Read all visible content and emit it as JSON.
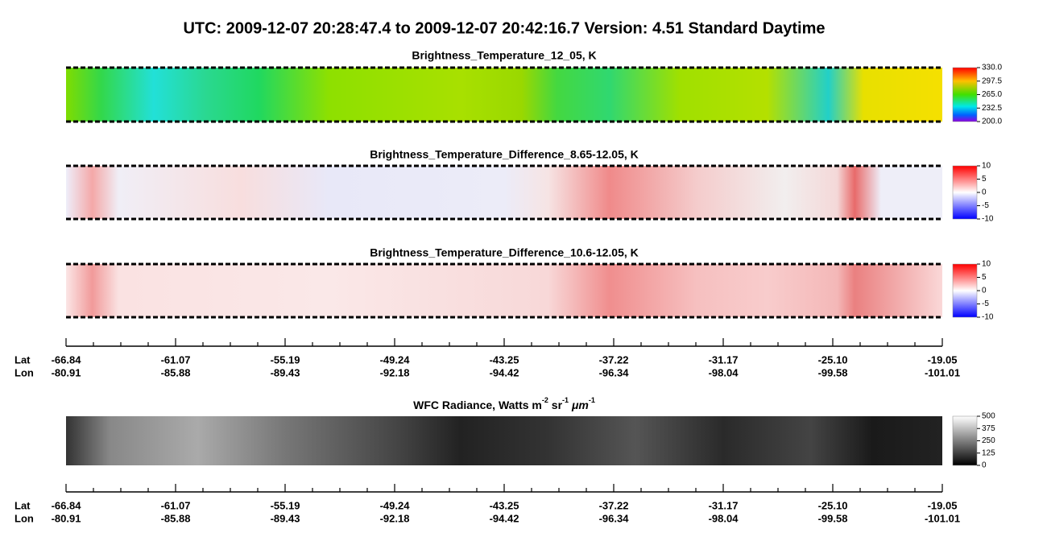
{
  "title": "UTC:  2009-12-07   20:28:47.4  to  2009-12-07   20:42:16.7    Version: 4.51  Standard Daytime",
  "panels": [
    {
      "title": "Brightness_Temperature_12_05, K",
      "colorbar_ticks": [
        "330.0",
        "297.5",
        "265.0",
        "232.5",
        "200.0"
      ]
    },
    {
      "title": "Brightness_Temperature_Difference_8.65-12.05, K",
      "colorbar_ticks": [
        "10",
        "5",
        "0",
        "-5",
        "-10"
      ]
    },
    {
      "title": "Brightness_Temperature_Difference_10.6-12.05, K",
      "colorbar_ticks": [
        "10",
        "5",
        "0",
        "-5",
        "-10"
      ]
    },
    {
      "title_parts": [
        "WFC Radiance, Watts m",
        "-2",
        " sr",
        "-1",
        " ",
        "μm",
        "-1"
      ],
      "colorbar_ticks": [
        "500",
        "375",
        "250",
        "125",
        "0"
      ]
    }
  ],
  "axis": {
    "lat_label": "Lat",
    "lon_label": "Lon",
    "lat": [
      "-66.84",
      "-61.07",
      "-55.19",
      "-49.24",
      "-43.25",
      "-37.22",
      "-31.17",
      "-25.10",
      "-19.05"
    ],
    "lon": [
      "-80.91",
      "-85.88",
      "-89.43",
      "-92.18",
      "-94.42",
      "-96.34",
      "-98.04",
      "-99.58",
      "-101.01"
    ]
  }
}
